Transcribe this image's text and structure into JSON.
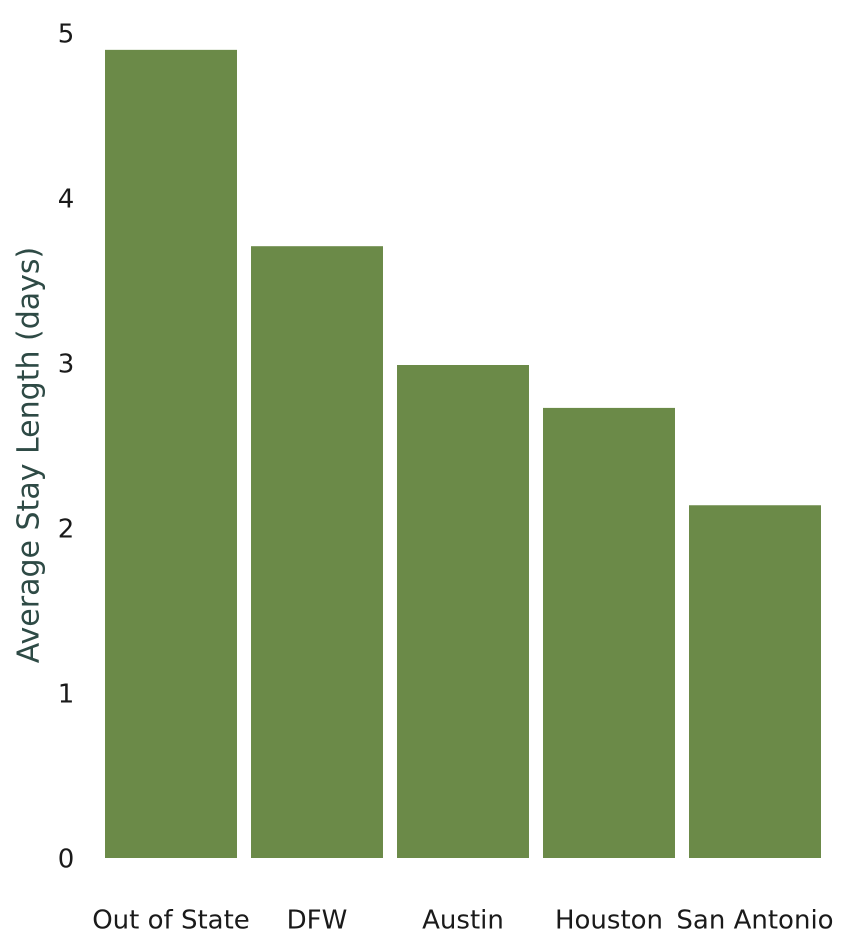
{
  "chart_data": {
    "type": "bar",
    "y_label": "Average Stay Length (days)",
    "categories": [
      "Out of State",
      "DFW",
      "Austin",
      "Houston",
      "San Antonio"
    ],
    "values": [
      4.91,
      3.72,
      3.0,
      2.74,
      2.15
    ],
    "color": "#6b8a48",
    "ylim": [
      0,
      5
    ],
    "yticks": [
      0,
      1,
      2,
      3,
      4,
      5
    ],
    "grid": false
  }
}
